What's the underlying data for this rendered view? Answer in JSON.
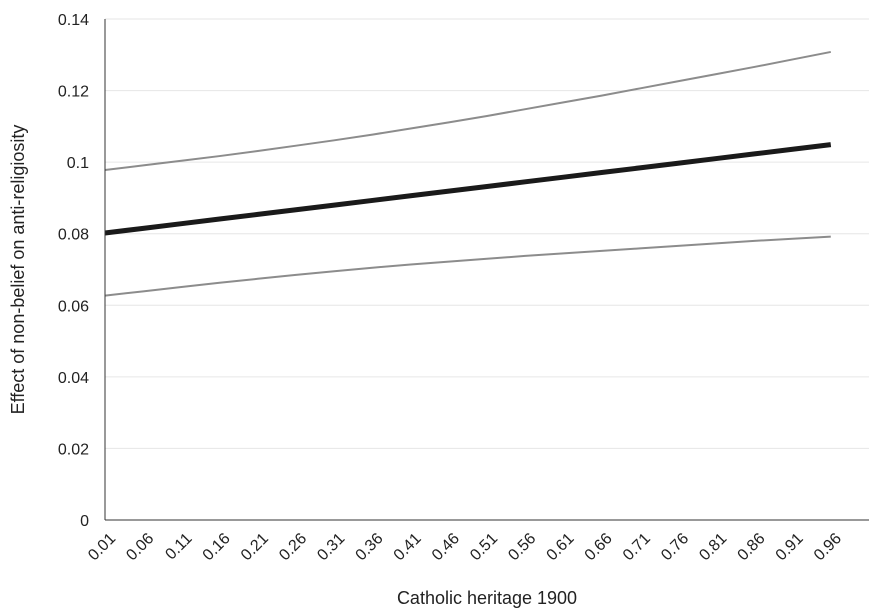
{
  "chart_data": {
    "type": "line",
    "title": "",
    "xlabel": "Catholic heritage 1900",
    "ylabel": "Effect of non-belief on anti-religiosity",
    "x": [
      0.01,
      0.06,
      0.11,
      0.16,
      0.21,
      0.26,
      0.31,
      0.36,
      0.41,
      0.46,
      0.51,
      0.56,
      0.61,
      0.66,
      0.71,
      0.76,
      0.81,
      0.86,
      0.91,
      0.96
    ],
    "x_tick_labels": [
      "0.01",
      "0.06",
      "0.11",
      "0.16",
      "0.21",
      "0.26",
      "0.31",
      "0.36",
      "0.41",
      "0.46",
      "0.51",
      "0.56",
      "0.61",
      "0.66",
      "0.71",
      "0.76",
      "0.81",
      "0.86",
      "0.91",
      "0.96"
    ],
    "ylim": [
      0,
      0.14
    ],
    "y_ticks": [
      0,
      0.02,
      0.04,
      0.06,
      0.08,
      0.1,
      0.12,
      0.14
    ],
    "y_tick_labels": [
      "0",
      "0.02",
      "0.04",
      "0.06",
      "0.08",
      "0.1",
      "0.12",
      "0.14"
    ],
    "grid": true,
    "legend": "none",
    "series": [
      {
        "role": "upper-bound",
        "color": "#8c8c8c",
        "values": [
          0.0978,
          0.0991,
          0.1004,
          0.1017,
          0.1031,
          0.1046,
          0.1061,
          0.1077,
          0.1094,
          0.1111,
          0.1129,
          0.1148,
          0.1167,
          0.1186,
          0.1206,
          0.1226,
          0.1246,
          0.1266,
          0.1287,
          0.1308
        ]
      },
      {
        "role": "estimate",
        "color": "#1a1a1a",
        "values": [
          0.0802,
          0.0815,
          0.0828,
          0.0841,
          0.0854,
          0.0867,
          0.088,
          0.0893,
          0.0906,
          0.0919,
          0.0932,
          0.0945,
          0.0958,
          0.0971,
          0.0984,
          0.0997,
          0.101,
          0.1023,
          0.1036,
          0.1049
        ]
      },
      {
        "role": "lower-bound",
        "color": "#8c8c8c",
        "values": [
          0.0627,
          0.0639,
          0.0651,
          0.0663,
          0.0674,
          0.0685,
          0.0695,
          0.0705,
          0.0714,
          0.0722,
          0.073,
          0.0738,
          0.0745,
          0.0752,
          0.0759,
          0.0766,
          0.0773,
          0.078,
          0.0786,
          0.0792
        ]
      }
    ]
  }
}
